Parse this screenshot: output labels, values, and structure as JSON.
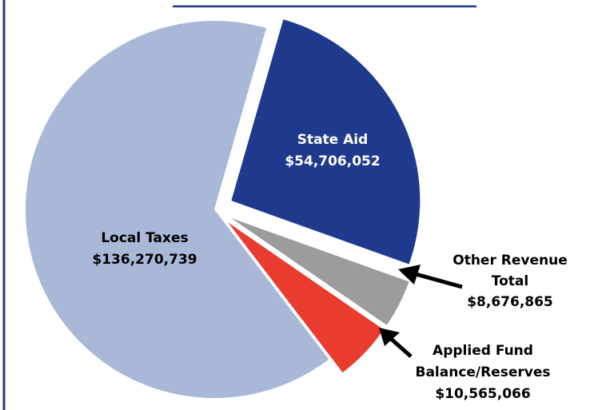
{
  "chart_data": {
    "type": "pie",
    "title": "",
    "slices": [
      {
        "label": "State Aid",
        "display": "$54,706,052",
        "value": 54706052,
        "color": "#1f3a8c",
        "label_color": "#ffffff",
        "exploded": true
      },
      {
        "label": "Other Revenue Total",
        "label_lines": [
          "Other Revenue",
          "Total"
        ],
        "display": "$8,676,865",
        "value": 8676865,
        "color": "#9c9c9c",
        "label_color": "#000000",
        "exploded": true
      },
      {
        "label": "Applied Fund Balance/Reserves",
        "label_lines": [
          "Applied Fund",
          "Balance/Reserves"
        ],
        "display": "$10,565,066",
        "value": 10565066,
        "color": "#ea3c2e",
        "label_color": "#000000",
        "exploded": true
      },
      {
        "label": "Local Taxes",
        "display": "$136,270,739",
        "value": 136270739,
        "color": "#aab8d8",
        "label_color": "#000000",
        "exploded": false
      }
    ]
  },
  "colors": {
    "border": "#1f3a8c",
    "arrow": "#000000"
  }
}
